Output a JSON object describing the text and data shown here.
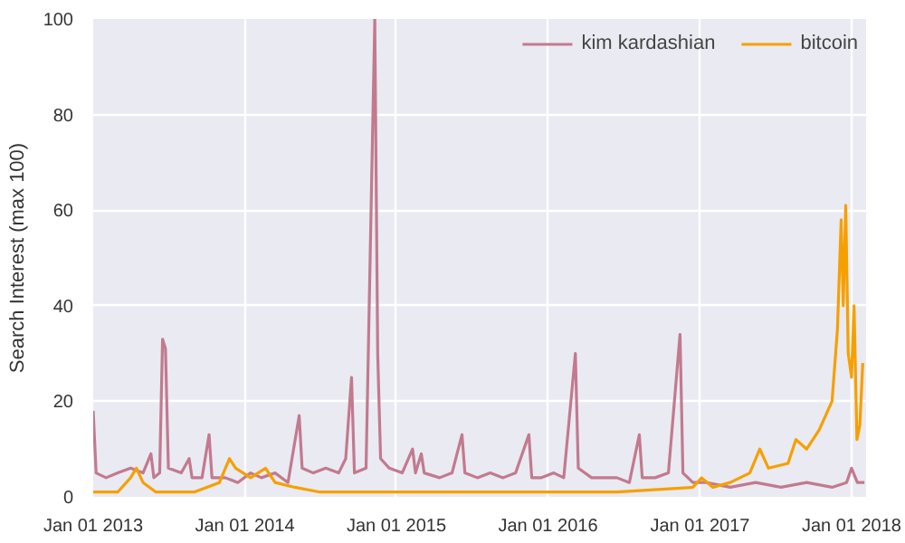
{
  "chart_data": {
    "type": "line",
    "ylabel": "Search Interest (max 100)",
    "ylim": [
      0,
      100
    ],
    "yticks": [
      0,
      20,
      40,
      60,
      80,
      100
    ],
    "xlim": [
      "2013-01-01",
      "2018-02-05"
    ],
    "xticks": [
      {
        "value": "2013-01-01",
        "label": "Jan 01 2013"
      },
      {
        "value": "2014-01-01",
        "label": "Jan 01 2014"
      },
      {
        "value": "2015-01-01",
        "label": "Jan 01 2015"
      },
      {
        "value": "2016-01-01",
        "label": "Jan 01 2016"
      },
      {
        "value": "2017-01-01",
        "label": "Jan 01 2017"
      },
      {
        "value": "2018-01-01",
        "label": "Jan 01 2018"
      }
    ],
    "grid": true,
    "legend": "top right",
    "series": [
      {
        "name": "kim kardashian",
        "color": "#c27a8e",
        "x": [
          "2013-01-01",
          "2013-01-08",
          "2013-02-01",
          "2013-03-01",
          "2013-04-01",
          "2013-05-01",
          "2013-05-20",
          "2013-05-27",
          "2013-06-10",
          "2013-06-17",
          "2013-06-24",
          "2013-07-01",
          "2013-08-01",
          "2013-08-20",
          "2013-08-27",
          "2013-09-20",
          "2013-10-07",
          "2013-10-14",
          "2013-11-15",
          "2013-12-15",
          "2014-01-15",
          "2014-02-10",
          "2014-03-15",
          "2014-04-15",
          "2014-05-12",
          "2014-05-19",
          "2014-06-15",
          "2014-07-15",
          "2014-08-15",
          "2014-09-01",
          "2014-09-15",
          "2014-09-22",
          "2014-10-20",
          "2014-11-10",
          "2014-11-17",
          "2014-11-24",
          "2014-12-15",
          "2015-01-15",
          "2015-02-09",
          "2015-02-16",
          "2015-03-02",
          "2015-03-09",
          "2015-04-15",
          "2015-05-15",
          "2015-06-08",
          "2015-06-15",
          "2015-07-15",
          "2015-08-15",
          "2015-09-15",
          "2015-10-15",
          "2015-11-16",
          "2015-11-23",
          "2015-12-15",
          "2016-01-15",
          "2016-02-08",
          "2016-03-07",
          "2016-03-14",
          "2016-04-15",
          "2016-05-15",
          "2016-06-15",
          "2016-07-15",
          "2016-08-08",
          "2016-08-15",
          "2016-09-15",
          "2016-10-17",
          "2016-11-14",
          "2016-11-21",
          "2016-12-15",
          "2017-01-15",
          "2017-03-15",
          "2017-05-15",
          "2017-07-15",
          "2017-09-15",
          "2017-11-15",
          "2017-12-20",
          "2018-01-01",
          "2018-01-15",
          "2018-02-01"
        ],
        "values": [
          18,
          5,
          4,
          5,
          6,
          5,
          9,
          4,
          5,
          33,
          31,
          6,
          5,
          8,
          4,
          4,
          13,
          4,
          4,
          3,
          5,
          4,
          5,
          3,
          17,
          6,
          5,
          6,
          5,
          8,
          25,
          5,
          6,
          100,
          30,
          8,
          6,
          5,
          10,
          5,
          9,
          5,
          4,
          5,
          13,
          5,
          4,
          5,
          4,
          5,
          13,
          4,
          4,
          5,
          4,
          30,
          6,
          4,
          4,
          4,
          3,
          13,
          4,
          4,
          5,
          34,
          5,
          3,
          3,
          2,
          3,
          2,
          3,
          2,
          3,
          6,
          3,
          3
        ]
      },
      {
        "name": "bitcoin",
        "color": "#f5a000",
        "x": [
          "2013-01-01",
          "2013-03-01",
          "2013-04-01",
          "2013-04-15",
          "2013-05-01",
          "2013-06-01",
          "2013-09-01",
          "2013-11-01",
          "2013-11-25",
          "2013-12-10",
          "2014-01-15",
          "2014-02-20",
          "2014-03-15",
          "2014-05-01",
          "2014-07-01",
          "2015-01-01",
          "2016-01-01",
          "2016-06-15",
          "2016-12-15",
          "2017-01-05",
          "2017-02-01",
          "2017-03-15",
          "2017-05-01",
          "2017-05-25",
          "2017-06-15",
          "2017-08-01",
          "2017-08-20",
          "2017-09-15",
          "2017-10-15",
          "2017-11-15",
          "2017-11-28",
          "2017-12-07",
          "2017-12-12",
          "2017-12-18",
          "2017-12-24",
          "2018-01-01",
          "2018-01-07",
          "2018-01-14",
          "2018-01-21",
          "2018-01-28"
        ],
        "values": [
          1,
          1,
          4,
          6,
          3,
          1,
          1,
          3,
          8,
          6,
          4,
          6,
          3,
          2,
          1,
          1,
          1,
          1,
          2,
          4,
          2,
          3,
          5,
          10,
          6,
          7,
          12,
          10,
          14,
          20,
          35,
          58,
          40,
          61,
          30,
          25,
          40,
          12,
          15,
          28
        ]
      }
    ]
  }
}
